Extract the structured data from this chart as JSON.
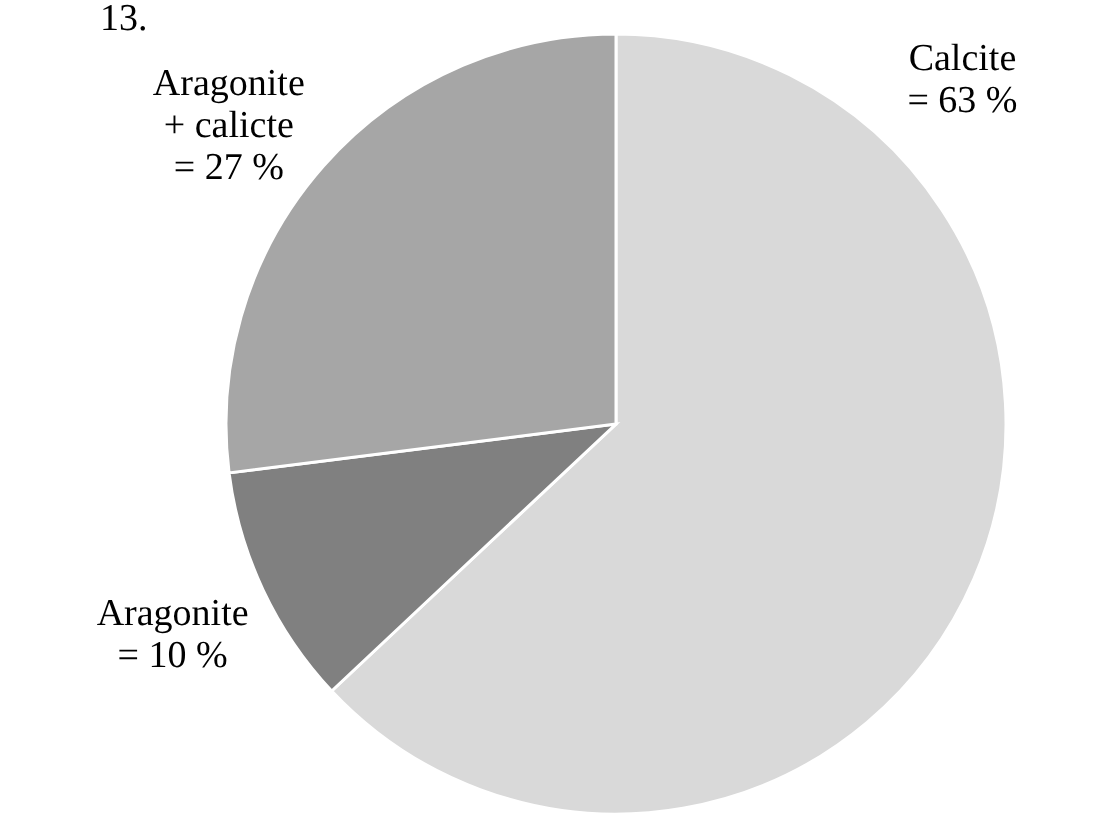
{
  "chart_data": {
    "type": "pie",
    "title": "13.",
    "categories": [
      "Calcite",
      "Aragonite",
      "Aragonite + calicte"
    ],
    "values": [
      63,
      10,
      27
    ],
    "colors": [
      "#d9d9d9",
      "#808080",
      "#a6a6a6"
    ],
    "value_labels": [
      "= 63 %",
      "= 10 %",
      "= 27 %"
    ]
  }
}
